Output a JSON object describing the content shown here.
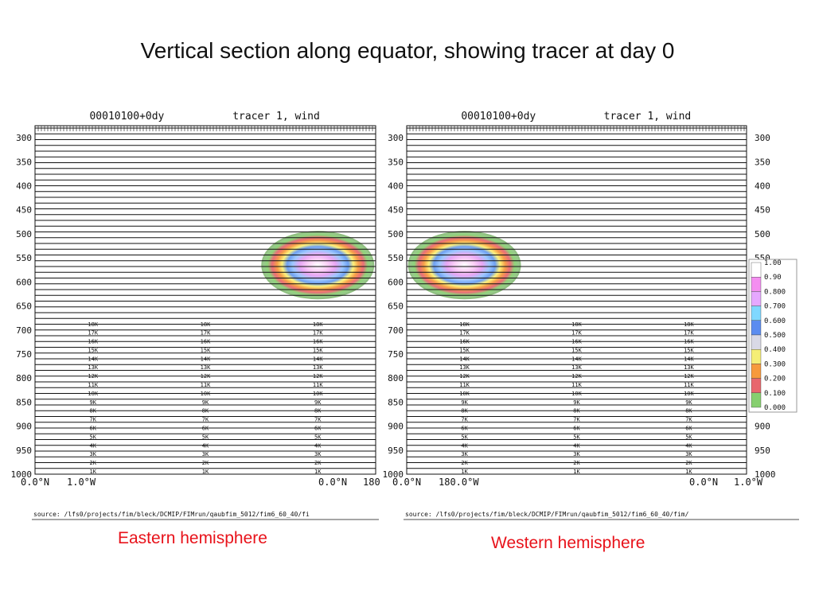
{
  "slide": {
    "title": "Vertical section along equator, showing tracer at day 0",
    "captions": {
      "east": "Eastern hemisphere",
      "west": "Western hemisphere"
    },
    "caption_color": "#e8121a"
  },
  "chart_data": [
    {
      "type": "heatmap",
      "panel": "east",
      "header_left": "00010100+0dy",
      "header_right": "tracer 1, wind",
      "y_ticks": [
        300,
        350,
        400,
        450,
        500,
        550,
        600,
        650,
        700,
        750,
        800,
        850,
        900,
        950,
        1000
      ],
      "ylim": [
        275,
        1000
      ],
      "x_labels": [
        "0.0°N",
        "1.0°W",
        "0.0°N",
        "180."
      ],
      "height_labels": [
        "18K",
        "17K",
        "16K",
        "15K",
        "14K",
        "13K",
        "12K",
        "11K",
        "10K",
        "9K",
        "8K",
        "7K",
        "6K",
        "5K",
        "4K",
        "3K",
        "2K",
        "1K"
      ],
      "tracer_blob": {
        "center_x_fraction": 0.83,
        "center_pressure": 565,
        "peak_value": 1.0
      },
      "source_text": "source: /lfs0/projects/fim/bleck/DCMIP/FIMrun/qaubfim_5012/fim6_60_40/fi"
    },
    {
      "type": "heatmap",
      "panel": "west",
      "header_left": "00010100+0dy",
      "header_right": "tracer 1, wind",
      "y_ticks": [
        300,
        350,
        400,
        450,
        500,
        550,
        600,
        650,
        700,
        750,
        800,
        850,
        900,
        950,
        1000
      ],
      "ylim": [
        275,
        1000
      ],
      "x_labels": [
        "0.0°N",
        "180.0°W",
        "0.0°N",
        "1.0°W"
      ],
      "height_labels": [
        "18K",
        "17K",
        "16K",
        "15K",
        "14K",
        "13K",
        "12K",
        "11K",
        "10K",
        "9K",
        "8K",
        "7K",
        "6K",
        "5K",
        "4K",
        "3K",
        "2K",
        "1K"
      ],
      "tracer_blob": {
        "center_x_fraction": 0.17,
        "center_pressure": 565,
        "peak_value": 1.0
      },
      "colorbar": {
        "labels": [
          "1.00",
          "0.90",
          "0.800",
          "0.700",
          "0.600",
          "0.500",
          "0.400",
          "0.300",
          "0.200",
          "0.100",
          "0.000"
        ],
        "colors": [
          "#ffffff",
          "#f48ef0",
          "#e6a8ff",
          "#7fd8ff",
          "#5b8cf0",
          "#d9d9e6",
          "#f5ee76",
          "#f79a3c",
          "#e8676d",
          "#86cf6f",
          "#a3a3a3"
        ]
      },
      "source_text": "source: /lfs0/projects/fim/bleck/DCMIP/FIMrun/qaubfim_5012/fim6_60_40/fim/"
    }
  ]
}
